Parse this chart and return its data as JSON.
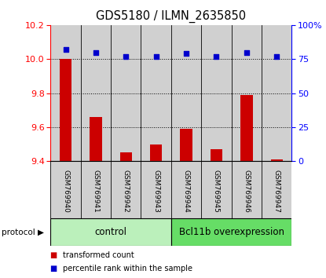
{
  "title": "GDS5180 / ILMN_2635850",
  "samples": [
    "GSM769940",
    "GSM769941",
    "GSM769942",
    "GSM769943",
    "GSM769944",
    "GSM769945",
    "GSM769946",
    "GSM769947"
  ],
  "transformed_count": [
    10.0,
    9.66,
    9.45,
    9.5,
    9.59,
    9.47,
    9.79,
    9.41
  ],
  "percentile_rank": [
    82,
    80,
    77,
    77,
    79,
    77,
    80,
    77
  ],
  "ylim_left": [
    9.4,
    10.2
  ],
  "ylim_right": [
    0,
    100
  ],
  "yticks_left": [
    9.4,
    9.6,
    9.8,
    10.0,
    10.2
  ],
  "yticks_right": [
    0,
    25,
    50,
    75,
    100
  ],
  "ytick_labels_right": [
    "0",
    "25",
    "50",
    "75",
    "100%"
  ],
  "bar_color": "#cc0000",
  "dot_color": "#0000cc",
  "bg_color": "#ffffff",
  "label_area_color_light": "#bbf0bb",
  "label_area_color_dark": "#66dd66",
  "sample_area_color": "#d0d0d0",
  "control_label": "control",
  "overexp_label": "Bcl11b overexpression",
  "protocol_label": "protocol",
  "legend_bar_label": "transformed count",
  "legend_dot_label": "percentile rank within the sample",
  "n_control": 4,
  "n_overexp": 4,
  "figsize": [
    4.15,
    3.54
  ],
  "dpi": 100
}
